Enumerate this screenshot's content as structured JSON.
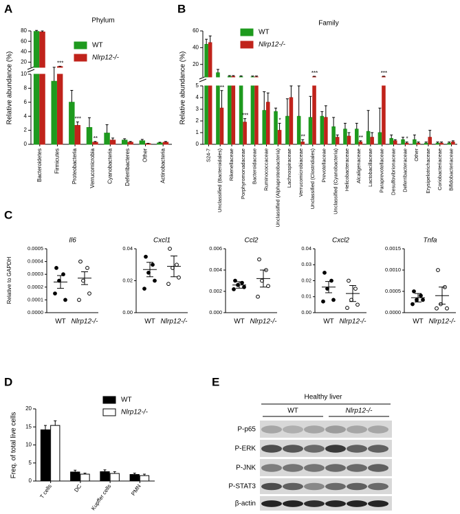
{
  "chart_data": [
    {
      "type": "bar",
      "panel_label": "A",
      "title": "Phylum",
      "y_label": "Relative abundance (%)",
      "categories": [
        "Bacteroidetes",
        "Firmicutes",
        "Proteobacteria",
        "Verrucomicrobia",
        "Cyanobacteria",
        "Deferribacteres",
        "Other",
        "Actinobacteria"
      ],
      "series": [
        {
          "name": "WT",
          "color": "#1e9a1e",
          "values": [
            79,
            9,
            6,
            2.4,
            1.6,
            0.6,
            0.5,
            0.2
          ],
          "errors": [
            2,
            1.2,
            1.7,
            1.4,
            1.2,
            0.2,
            0.2,
            0.1
          ]
        },
        {
          "name": "Nlrp12-/-",
          "color": "#c0231b",
          "values": [
            78,
            11.5,
            2.7,
            0.3,
            0.6,
            0.3,
            0.1,
            0.3
          ],
          "errors": [
            2,
            0.6,
            0.5,
            0.1,
            0.3,
            0.1,
            0.05,
            0.1
          ]
        }
      ],
      "significance": [
        null,
        "***",
        "***",
        "**",
        null,
        null,
        null,
        null
      ],
      "segments": [
        {
          "ylim": [
            0,
            10
          ],
          "yticks": [
            0,
            2,
            4,
            6,
            8,
            10
          ]
        },
        {
          "ylim": [
            10,
            80
          ],
          "yticks": [
            20,
            40,
            60,
            80
          ]
        }
      ]
    },
    {
      "type": "bar",
      "panel_label": "B",
      "title": "Family",
      "y_label": "Relative abundance (%)",
      "categories": [
        "S24-7",
        "Unclassified (Bacteroidales)",
        "Rikenellaceae",
        "Porphyromonadaceae",
        "Bacteroidaceae",
        "Ruminococcaceae",
        "Unclassified (Alphaproteobacteria)",
        "Lachnospiraceae",
        "Verrucomicrobiaceae",
        "Unclassified (Clostridiales)",
        "Prevotellaceae",
        "Unclassified (Cyanobacteria)",
        "Helicobacteraceae",
        "Alcaligenaceae",
        "Lactobacillaceae",
        "Paraprevotellaceae",
        "Desulfovibrionaceae",
        "Deferribacteraceae",
        "Other",
        "Erysipelotrichaceae",
        "Coriobacteriaceae",
        "Bifidobacteriaceae"
      ],
      "series": [
        {
          "name": "WT",
          "color": "#1e9a1e",
          "values": [
            44,
            10,
            5.6,
            5.3,
            5.1,
            2.9,
            2.8,
            2.4,
            2.4,
            2.3,
            2.4,
            1.5,
            1.3,
            1.3,
            1.1,
            1.0,
            0.5,
            0.4,
            0.4,
            0.1,
            0.1,
            0.1
          ],
          "errors": [
            6,
            4,
            1,
            1,
            1,
            1.6,
            0.3,
            1.5,
            2.6,
            1.8,
            0.4,
            0.8,
            0.5,
            0.5,
            1.8,
            2.1,
            0.3,
            0.2,
            0.4,
            0.1,
            0.1,
            0.1
          ]
        },
        {
          "name": "Nlrp12-/-",
          "color": "#c0231b",
          "values": [
            46,
            3.1,
            5.6,
            1.9,
            5.1,
            3.6,
            1.2,
            4.0,
            0.2,
            5.3,
            2.3,
            0.6,
            0.7,
            0.2,
            0.6,
            5.5,
            0.3,
            0.1,
            0.1,
            0.6,
            0.1,
            0.2
          ],
          "errors": [
            8,
            1.5,
            1,
            0.3,
            1,
            0.8,
            0.6,
            1,
            0.2,
            0.5,
            1,
            0.2,
            0.3,
            0.1,
            0.4,
            0.4,
            0.1,
            0.1,
            0.1,
            0.6,
            0.1,
            0.1
          ]
        }
      ],
      "significance": [
        null,
        "**",
        null,
        "***",
        null,
        null,
        "*",
        null,
        "**",
        "***",
        null,
        null,
        null,
        "**",
        null,
        "***",
        null,
        "*",
        null,
        null,
        null,
        null
      ],
      "segments": [
        {
          "ylim": [
            0,
            5
          ],
          "yticks": [
            0,
            1,
            2,
            3,
            4,
            5
          ]
        },
        {
          "ylim": [
            5,
            60
          ],
          "yticks": [
            20,
            40,
            60
          ]
        }
      ]
    },
    {
      "type": "dot",
      "panel_label": "C",
      "title": "Il6",
      "y_label": "Relative to GAPDH",
      "ylim": [
        0,
        0.0005
      ],
      "yticks": [
        {
          "value": 0,
          "label": "0.0000"
        },
        0.0001,
        0.0002,
        0.0003,
        0.0004,
        0.0005
      ],
      "series": [
        {
          "name": "WT",
          "filled": true,
          "values": [
            0.00035,
            0.0003,
            0.00025,
            0.0001,
            0.00015
          ],
          "mean": 0.00024,
          "sem": 5e-05
        },
        {
          "name": "Nlrp12-/-",
          "filled": false,
          "values": [
            0.0004,
            0.00035,
            0.00025,
            0.00015,
            0.0001
          ],
          "mean": 0.00027,
          "sem": 5e-05
        }
      ]
    },
    {
      "type": "dot",
      "title": "Cxcl1",
      "ylim": [
        0,
        0.04
      ],
      "yticks": [
        {
          "value": 0,
          "label": "0.00"
        },
        0.02,
        0.04
      ],
      "series": [
        {
          "name": "WT",
          "filled": true,
          "values": [
            0.035,
            0.03,
            0.025,
            0.02,
            0.015
          ],
          "mean": 0.027,
          "sem": 0.0045
        },
        {
          "name": "Nlrp12-/-",
          "filled": false,
          "values": [
            0.04,
            0.03,
            0.028,
            0.022,
            0.018
          ],
          "mean": 0.029,
          "sem": 0.0065
        }
      ]
    },
    {
      "type": "dot",
      "title": "Ccl2",
      "ylim": [
        0,
        0.006
      ],
      "yticks": [
        {
          "value": 0,
          "label": "0.000"
        },
        0.002,
        0.004,
        0.006
      ],
      "series": [
        {
          "name": "WT",
          "filled": true,
          "values": [
            0.003,
            0.0028,
            0.0026,
            0.0024,
            0.0022
          ],
          "mean": 0.0026,
          "sem": 0.0003
        },
        {
          "name": "Nlrp12-/-",
          "filled": false,
          "values": [
            0.005,
            0.004,
            0.003,
            0.0025,
            0.0015
          ],
          "mean": 0.0032,
          "sem": 0.0008
        }
      ]
    },
    {
      "type": "dot",
      "title": "Cxcl2",
      "ylim": [
        0,
        0.04
      ],
      "yticks": [
        {
          "value": 0,
          "label": "0.00"
        },
        0.01,
        0.02,
        0.03,
        0.04
      ],
      "series": [
        {
          "name": "WT",
          "filled": true,
          "values": [
            0.025,
            0.02,
            0.015,
            0.008,
            0.007
          ],
          "mean": 0.016,
          "sem": 0.0035
        },
        {
          "name": "Nlrp12-/-",
          "filled": false,
          "values": [
            0.02,
            0.015,
            0.008,
            0.005,
            0.003
          ],
          "mean": 0.012,
          "sem": 0.005
        }
      ]
    },
    {
      "type": "dot",
      "title": "Tnfa",
      "ylim": [
        0,
        0.0015
      ],
      "yticks": [
        {
          "value": 0,
          "label": "0.0000"
        },
        0.0005,
        {
          "value": 0.001,
          "label": "0.0010"
        },
        0.0015
      ],
      "series": [
        {
          "name": "WT",
          "filled": true,
          "values": [
            0.0005,
            0.0004,
            0.0003,
            0.0003,
            0.0002
          ],
          "mean": 0.00035,
          "sem": 0.0001
        },
        {
          "name": "Nlrp12-/-",
          "filled": false,
          "values": [
            0.001,
            0.0006,
            0.0002,
            0.0001,
            0.0001
          ],
          "mean": 0.0004,
          "sem": 0.0002
        }
      ]
    },
    {
      "type": "bar",
      "panel_label": "D",
      "y_label": "Freq. of total live cells",
      "categories": [
        "T cells",
        "DC",
        "Kupffer cells",
        "PMN"
      ],
      "series": [
        {
          "name": "WT",
          "color": "#000000",
          "values": [
            14.2,
            2.5,
            2.6,
            1.8
          ],
          "errors": [
            1.2,
            0.5,
            0.5,
            0.4
          ]
        },
        {
          "name": "Nlrp12-/-",
          "color": "#ffffff",
          "values": [
            15.4,
            1.9,
            2.1,
            1.5
          ],
          "errors": [
            1.3,
            0.3,
            0.5,
            0.4
          ]
        }
      ],
      "segments": [
        {
          "ylim": [
            0,
            20
          ],
          "yticks": [
            0,
            5,
            10,
            15,
            20
          ]
        }
      ]
    }
  ],
  "blot": {
    "panel_label": "E",
    "title": "Healthy liver",
    "groups": [
      "WT",
      "Nlrp12-/-"
    ],
    "rows": [
      "P-p65",
      "P-ERK",
      "P-JNK",
      "P-STAT3",
      "β-actin"
    ]
  }
}
